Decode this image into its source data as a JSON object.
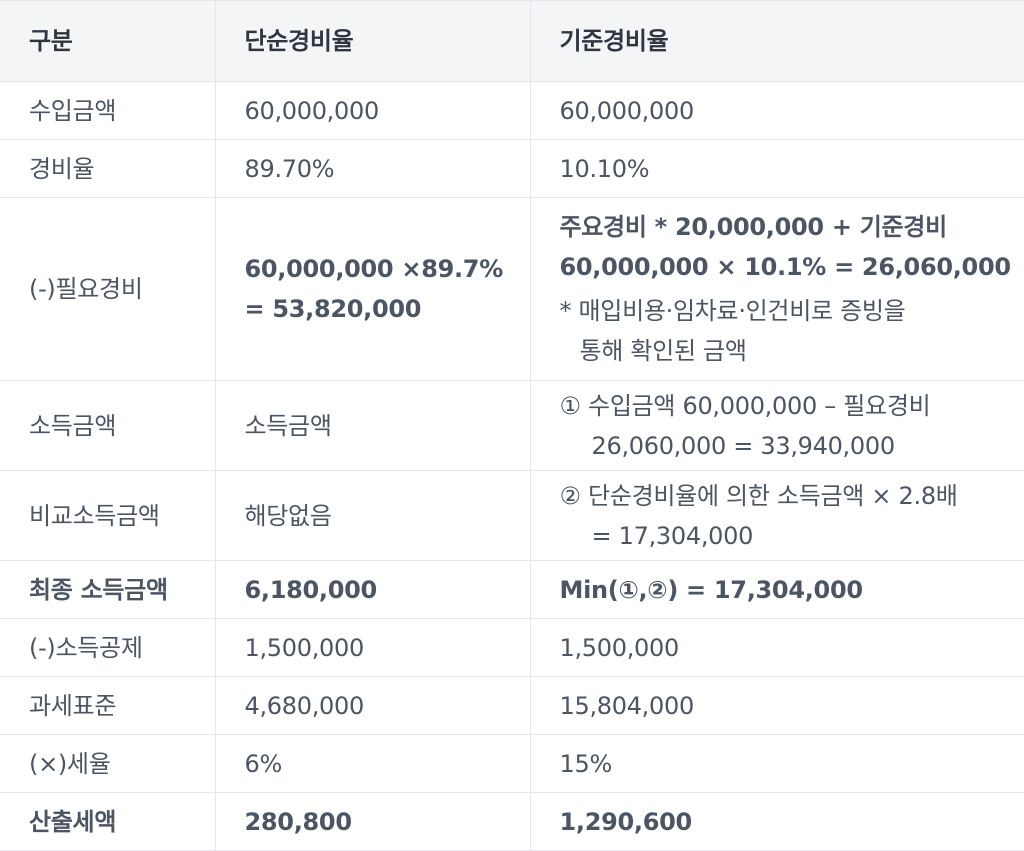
{
  "header": {
    "col1": "구분",
    "col2": "단순경비율",
    "col3": "기준경비율"
  },
  "rows": [
    {
      "label": "수입금액",
      "simple": "60,000,000",
      "standard": "60,000,000"
    },
    {
      "label": "경비율",
      "simple": "89.70%",
      "standard": "10.10%"
    },
    {
      "label": "(-)필요경비",
      "simple_line1": "60,000,000 ×89.7%",
      "simple_line2": "= 53,820,000",
      "standard_line1": "주요경비 * 20,000,000 + 기준경비",
      "standard_line2": "60,000,000 × 10.1% = 26,060,000",
      "standard_note1": "* 매입비용·임차료·인건비로 증빙을",
      "standard_note2": "통해 확인된 금액"
    },
    {
      "label": "소득금액",
      "simple": "소득금액",
      "standard_line1": "① 수입금액 60,000,000 – 필요경비",
      "standard_line2": "26,060,000 = 33,940,000"
    },
    {
      "label": "비교소득금액",
      "simple": "해당없음",
      "standard_line1": "② 단순경비율에 의한 소득금액 × 2.8배",
      "standard_line2": "= 17,304,000"
    },
    {
      "label": "최종 소득금액",
      "simple": "6,180,000",
      "standard": "Min(①,②) = 17,304,000"
    },
    {
      "label": "(-)소득공제",
      "simple": "1,500,000",
      "standard": "1,500,000"
    },
    {
      "label": "과세표준",
      "simple": "4,680,000",
      "standard": "15,804,000"
    },
    {
      "label": "(×)세율",
      "simple": "6%",
      "standard": "15%"
    },
    {
      "label": "산출세액",
      "simple": "280,800",
      "standard": "1,290,600"
    }
  ]
}
